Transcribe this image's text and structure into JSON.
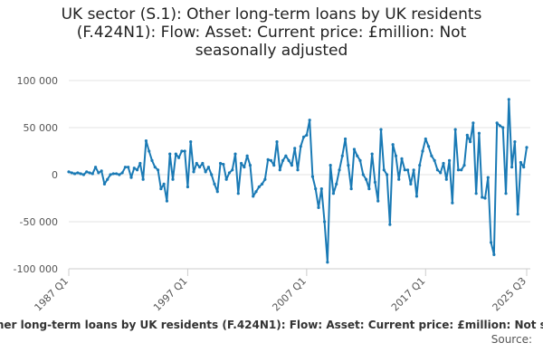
{
  "chart_data": {
    "type": "line",
    "title": "UK sector (S.1): Other long-term loans by UK residents (F.424N1): Flow: Asset: Current price: £million: Not seasonally adjusted",
    "source": "Source:",
    "color": "#1a7ab5",
    "grid": true,
    "categories": [
      "1987 Q1",
      null,
      null,
      null,
      null,
      null,
      null,
      null,
      null,
      null,
      null,
      null,
      null,
      null,
      null,
      null,
      null,
      null,
      null,
      null,
      null,
      null,
      null,
      null,
      null,
      null,
      null,
      null,
      null,
      null,
      null,
      null,
      null,
      null,
      null,
      null,
      null,
      null,
      null,
      null,
      "1997 Q1",
      null,
      null,
      null,
      null,
      null,
      null,
      null,
      null,
      null,
      null,
      null,
      null,
      null,
      null,
      null,
      null,
      null,
      null,
      null,
      null,
      null,
      null,
      null,
      null,
      null,
      null,
      null,
      null,
      null,
      null,
      null,
      null,
      null,
      null,
      null,
      null,
      null,
      null,
      null,
      "2007 Q1",
      null,
      null,
      null,
      null,
      null,
      null,
      null,
      null,
      null,
      null,
      null,
      null,
      null,
      null,
      null,
      null,
      null,
      null,
      null,
      null,
      null,
      null,
      null,
      null,
      null,
      null,
      null,
      null,
      null,
      null,
      null,
      null,
      null,
      null,
      null,
      null,
      null,
      null,
      null,
      "2017 Q1",
      null,
      null,
      null,
      null,
      null,
      null,
      null,
      null,
      null,
      null,
      null,
      null,
      null,
      null,
      null,
      null,
      null,
      null,
      null,
      null,
      null,
      null,
      null,
      null,
      null,
      null,
      null,
      null,
      null,
      null,
      null,
      null,
      null,
      "2025 Q3"
    ],
    "values": [
      3000,
      2000,
      1000,
      2000,
      1000,
      0,
      3000,
      2000,
      1000,
      8000,
      2000,
      4000,
      -10000,
      -5000,
      0,
      1000,
      1000,
      0,
      2000,
      8000,
      8000,
      -3000,
      7000,
      5000,
      12000,
      -5000,
      36000,
      25000,
      15000,
      8000,
      5000,
      -15000,
      -10000,
      -28000,
      22000,
      -5000,
      22000,
      18000,
      25000,
      25000,
      -13000,
      35000,
      3000,
      12000,
      8000,
      12000,
      3000,
      8000,
      0,
      -10000,
      -18000,
      12000,
      11000,
      -5000,
      2000,
      5000,
      22000,
      -20000,
      12000,
      8000,
      20000,
      10000,
      -23000,
      -18000,
      -13000,
      -10000,
      -5000,
      16000,
      15000,
      10000,
      35000,
      5000,
      15000,
      20000,
      15000,
      10000,
      28000,
      5000,
      30000,
      40000,
      42000,
      58000,
      -2000,
      -15000,
      -35000,
      -15000,
      -50000,
      -93000,
      10000,
      -20000,
      -10000,
      5000,
      20000,
      38000,
      10000,
      -15000,
      27000,
      20000,
      15000,
      0,
      -5000,
      -15000,
      22000,
      -8000,
      -28000,
      48000,
      5000,
      0,
      -53000,
      32000,
      20000,
      -5000,
      17000,
      5000,
      5000,
      -10000,
      5000,
      -23000,
      10000,
      25000,
      38000,
      30000,
      20000,
      15000,
      5000,
      2000,
      12000,
      -5000,
      15000,
      -30000,
      48000,
      5000,
      5000,
      10000,
      42000,
      35000,
      55000,
      -20000,
      44000,
      -24000,
      -25000,
      -3000,
      -72000,
      -85000,
      55000,
      52000,
      50000,
      -20000,
      80000,
      8000,
      35000,
      -42000,
      13000,
      8000,
      29000
    ],
    "ylim": [
      -100000,
      100000
    ],
    "yticks": [
      {
        "value": 100000,
        "label": "100 000"
      },
      {
        "value": 50000,
        "label": "50 000"
      },
      0,
      {
        "value": -50000,
        "label": "-50 000"
      },
      {
        "value": -100000,
        "label": "-100 000"
      }
    ]
  }
}
